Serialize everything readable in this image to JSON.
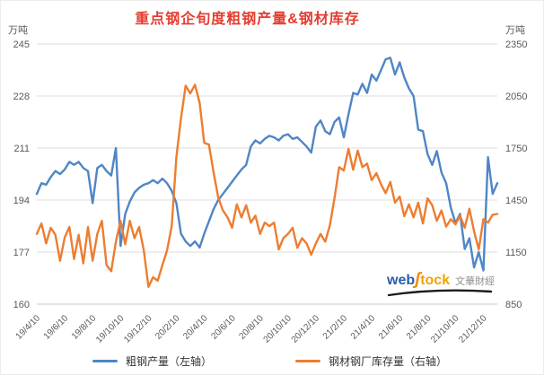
{
  "title": "重点钢企旬度粗钢产量&钢材库存",
  "left_axis_unit": "万吨",
  "right_axis_unit": "万吨",
  "watermark": {
    "web": "web",
    "s_glyph": "ʃ",
    "tock": "tock",
    "brand_cn": "文華財經"
  },
  "colors": {
    "title_red": "#e43d30",
    "production_blue": "#4f86c6",
    "inventory_orange": "#ed7d31",
    "gridline_gray": "#dcdcdc",
    "axis_text_gray": "#595959"
  },
  "chart_data": {
    "type": "line",
    "title": "重点钢企旬度粗钢产量&钢材库存",
    "grid": true,
    "legend_position": "bottom",
    "x": [
      "19/4/10",
      "19/4/20",
      "19/4/30",
      "19/5/10",
      "19/5/20",
      "19/5/31",
      "19/6/10",
      "19/6/20",
      "19/6/30",
      "19/7/10",
      "19/7/20",
      "19/7/31",
      "19/8/10",
      "19/8/20",
      "19/8/31",
      "19/9/10",
      "19/9/20",
      "19/9/30",
      "19/10/10",
      "19/10/20",
      "19/10/31",
      "19/11/10",
      "19/11/20",
      "19/11/30",
      "19/12/10",
      "19/12/20",
      "19/12/31",
      "20/1/10",
      "20/1/20",
      "20/1/31",
      "20/2/10",
      "20/2/20",
      "20/2/29",
      "20/3/10",
      "20/3/20",
      "20/3/31",
      "20/4/10",
      "20/4/20",
      "20/4/30",
      "20/5/10",
      "20/5/20",
      "20/5/31",
      "20/6/10",
      "20/6/20",
      "20/6/30",
      "20/7/10",
      "20/7/20",
      "20/7/31",
      "20/8/10",
      "20/8/20",
      "20/8/31",
      "20/9/10",
      "20/9/20",
      "20/9/30",
      "20/10/10",
      "20/10/20",
      "20/10/31",
      "20/11/10",
      "20/11/20",
      "20/11/30",
      "20/12/10",
      "20/12/20",
      "20/12/31",
      "21/1/10",
      "21/1/20",
      "21/1/31",
      "21/2/10",
      "21/2/20",
      "21/2/28",
      "21/3/10",
      "21/3/20",
      "21/3/31",
      "21/4/10",
      "21/4/20",
      "21/4/30",
      "21/5/10",
      "21/5/20",
      "21/5/31",
      "21/6/10",
      "21/6/20",
      "21/6/30",
      "21/7/10",
      "21/7/20",
      "21/7/31",
      "21/8/10",
      "21/8/20",
      "21/8/31",
      "21/9/10",
      "21/9/20",
      "21/9/30",
      "21/10/10",
      "21/10/20",
      "21/10/31",
      "21/11/10",
      "21/11/20",
      "21/11/30",
      "21/12/10",
      "21/12/20",
      "21/12/31",
      "22/1/10"
    ],
    "x_tick_labels": [
      "19/4/10",
      "19/6/10",
      "19/8/10",
      "19/10/10",
      "19/12/10",
      "20/2/10",
      "20/4/10",
      "20/6/10",
      "20/8/10",
      "20/10/10",
      "20/12/10",
      "21/2/10",
      "21/4/10",
      "21/6/10",
      "21/8/10",
      "21/10/10",
      "21/12/10"
    ],
    "x_tick_every": 6,
    "left_axis": {
      "unit": "万吨",
      "min": 160,
      "max": 245,
      "ticks": [
        245,
        228,
        211,
        194,
        177,
        160
      ]
    },
    "right_axis": {
      "unit": "万吨",
      "min": 850,
      "max": 2350,
      "ticks": [
        2350,
        2050,
        1750,
        1450,
        1150,
        850
      ]
    },
    "series": [
      {
        "name": "粗钢产量（左轴）",
        "axis": "left",
        "color": "#4f86c6",
        "values": [
          196,
          199.5,
          199,
          201.5,
          203.5,
          202.5,
          204,
          206.5,
          205.5,
          206.5,
          204.5,
          203.5,
          193,
          204.5,
          205.5,
          203.5,
          202,
          211,
          179,
          189.5,
          193.5,
          196.5,
          198,
          199,
          199.5,
          200.5,
          199.5,
          201,
          199.5,
          197,
          193,
          183,
          180.5,
          179,
          180.5,
          178.5,
          183,
          187,
          191,
          194,
          196,
          198,
          200,
          202,
          204,
          205.5,
          211.5,
          213.5,
          212.5,
          214,
          215,
          214.5,
          213.5,
          215,
          215.5,
          214,
          214.5,
          213,
          211.5,
          209.5,
          218,
          220,
          216.5,
          215.5,
          219.5,
          221,
          214.5,
          222,
          229,
          228.5,
          232,
          229,
          235,
          233,
          236.5,
          240,
          240.5,
          235,
          239,
          234,
          230.5,
          228,
          217,
          216.5,
          209,
          205.5,
          210,
          203,
          199.5,
          191.5,
          186.5,
          189.5,
          178,
          181.5,
          172,
          177,
          171,
          208,
          196,
          199.5
        ]
      },
      {
        "name": "钢材钢厂库存量（右轴）",
        "axis": "right",
        "color": "#ed7d31",
        "values": [
          1255,
          1315,
          1200,
          1290,
          1250,
          1100,
          1235,
          1295,
          1110,
          1250,
          1085,
          1295,
          1100,
          1255,
          1330,
          1075,
          1040,
          1210,
          1330,
          1195,
          1330,
          1230,
          1295,
          1160,
          950,
          1005,
          985,
          1075,
          1160,
          1300,
          1700,
          1920,
          2110,
          2065,
          2115,
          2010,
          1780,
          1770,
          1610,
          1465,
          1390,
          1350,
          1290,
          1425,
          1350,
          1420,
          1320,
          1360,
          1255,
          1320,
          1300,
          1320,
          1165,
          1230,
          1255,
          1290,
          1175,
          1230,
          1200,
          1135,
          1200,
          1255,
          1210,
          1305,
          1460,
          1640,
          1620,
          1745,
          1625,
          1735,
          1640,
          1660,
          1565,
          1605,
          1540,
          1490,
          1555,
          1435,
          1470,
          1357,
          1425,
          1350,
          1435,
          1315,
          1460,
          1420,
          1330,
          1390,
          1297,
          1340,
          1310,
          1360,
          1290,
          1400,
          1270,
          1165,
          1340,
          1320,
          1365,
          1370
        ]
      }
    ]
  }
}
